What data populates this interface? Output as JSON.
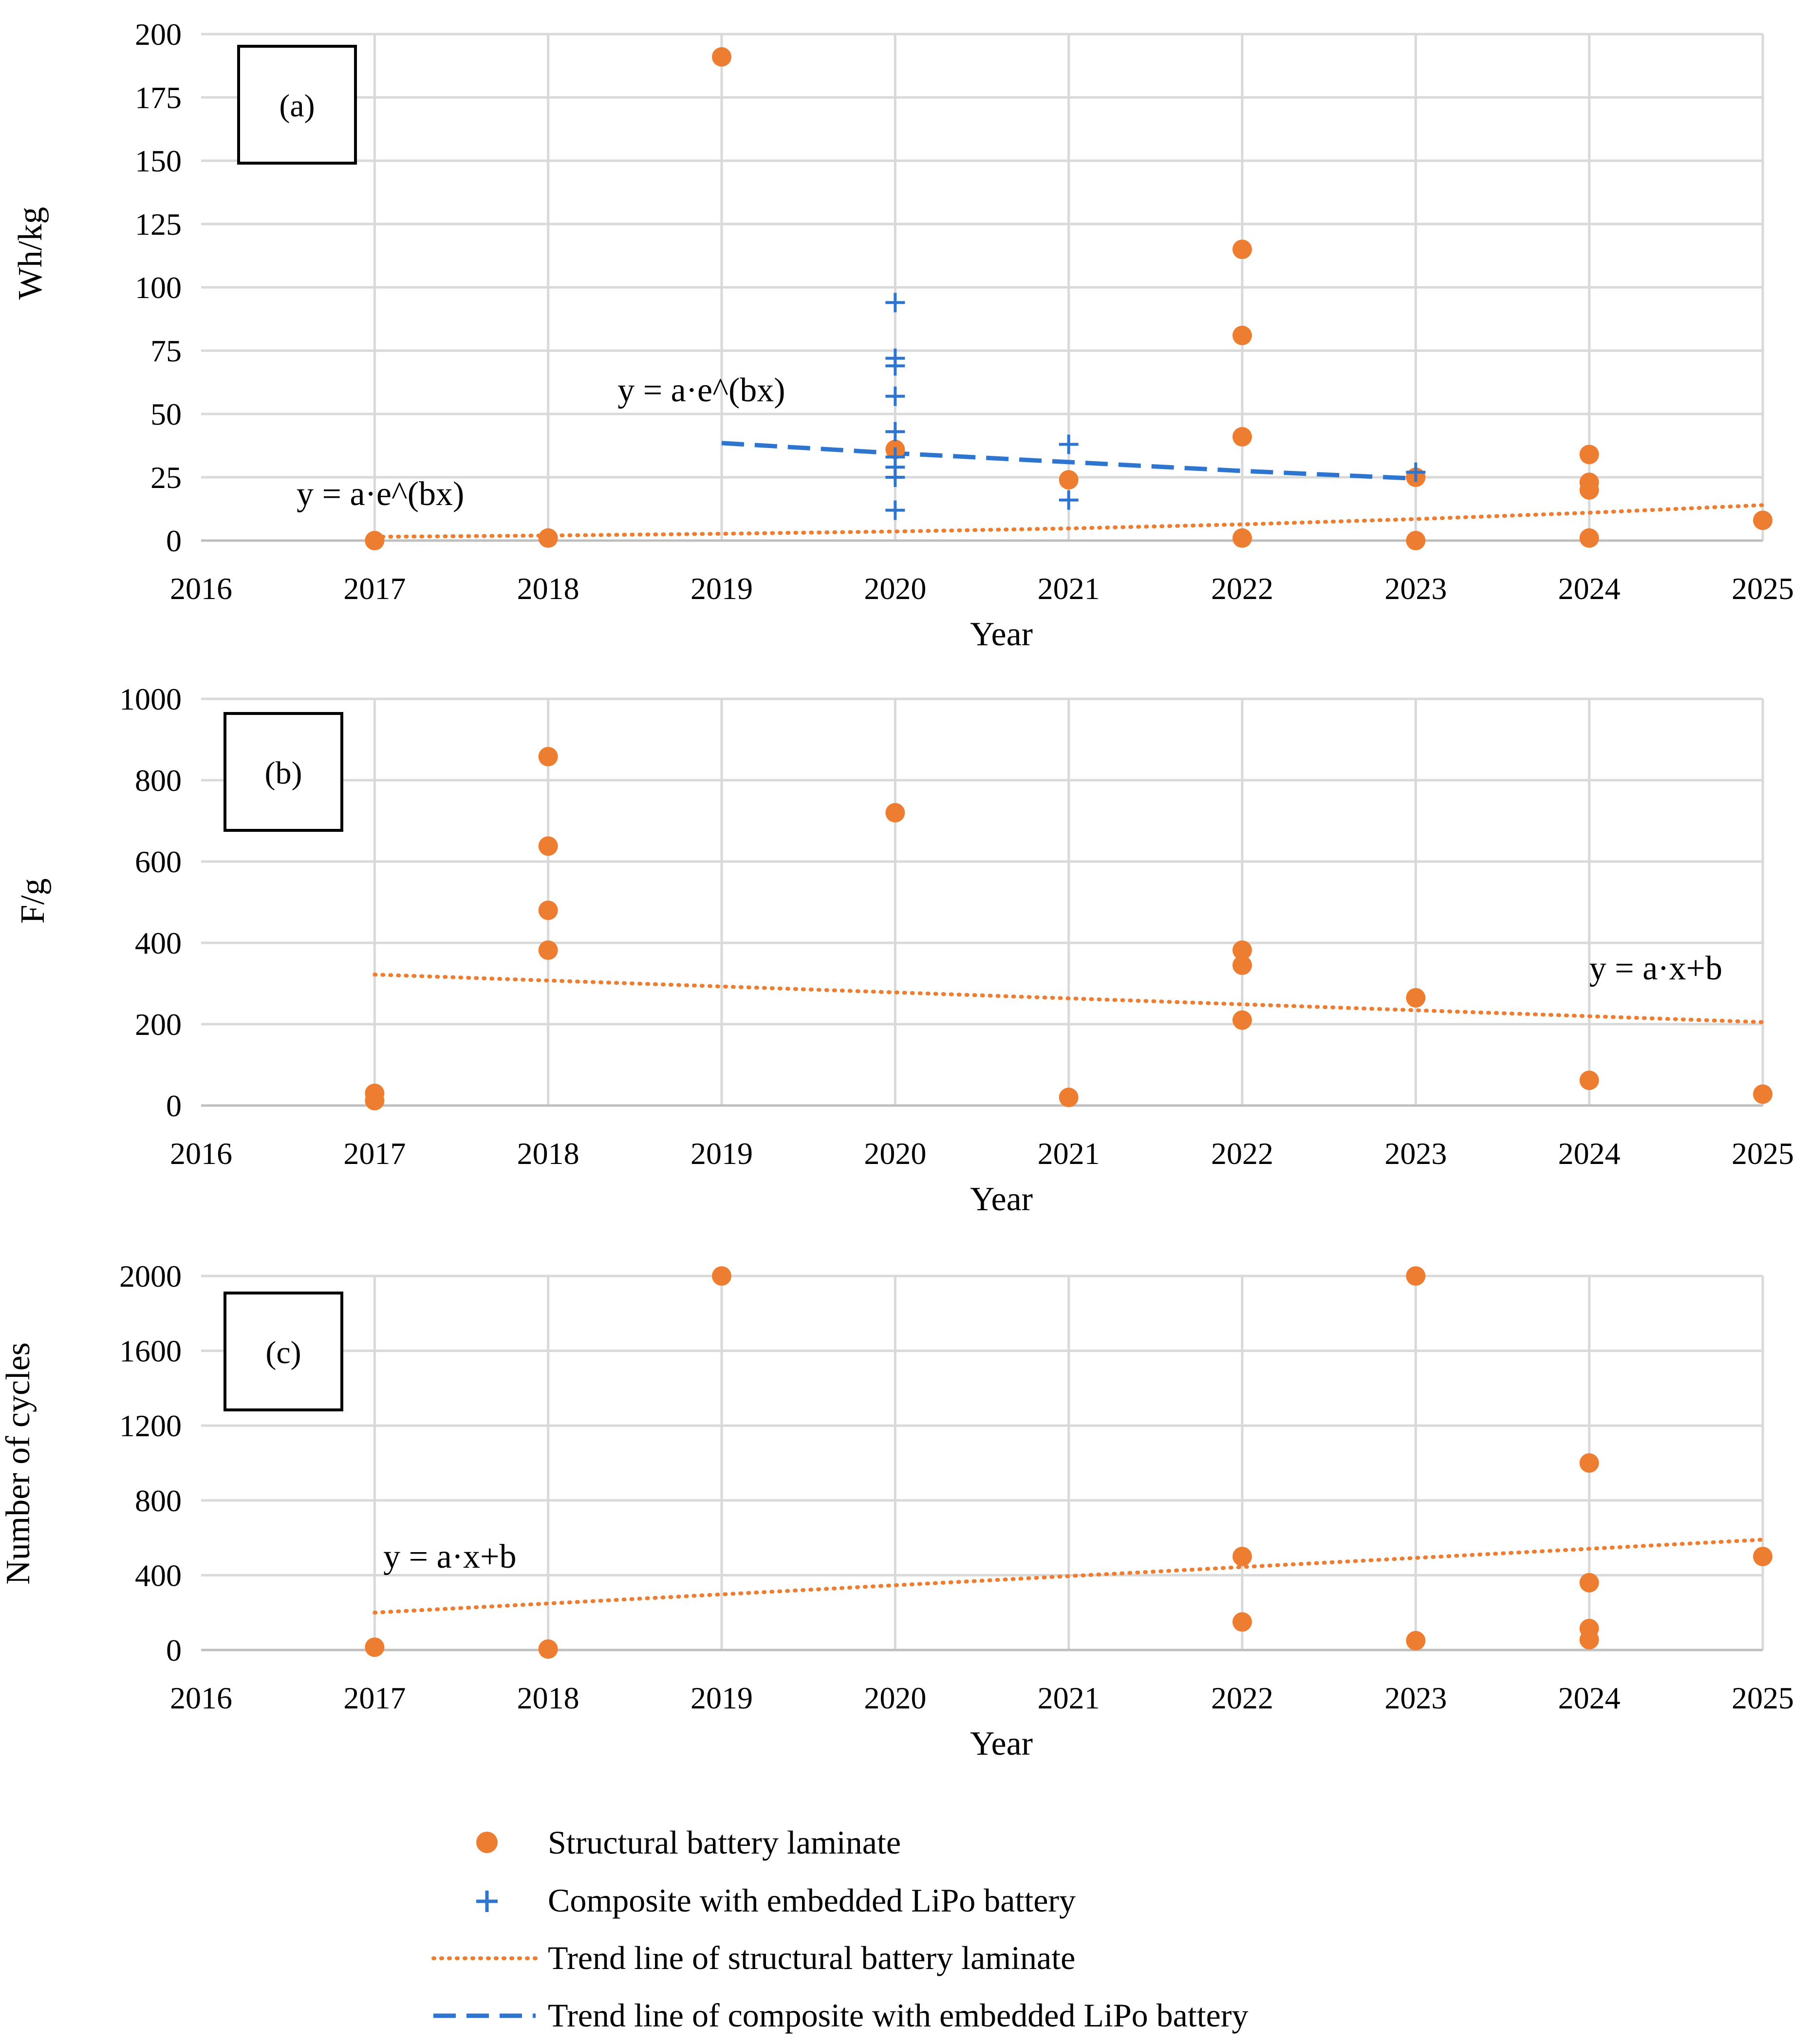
{
  "colors": {
    "structural": "#ED7D31",
    "composite": "#2E75D0",
    "grid": "#D9D9D9"
  },
  "legend": {
    "structural_label": "Structural battery laminate",
    "composite_label": "Composite with embedded LiPo battery",
    "structural_trend_label": "Trend line of structural battery laminate",
    "composite_trend_label": "Trend line of composite with embedded LiPo battery"
  },
  "chart_data": [
    {
      "type": "scatter",
      "panel_label": "(a)",
      "xlabel": "Year",
      "ylabel": "Wh/kg",
      "xlim": [
        2016,
        2025
      ],
      "ylim": [
        0,
        200
      ],
      "xticks": [
        2016,
        2017,
        2018,
        2019,
        2020,
        2021,
        2022,
        2023,
        2024,
        2025
      ],
      "yticks": [
        0,
        25,
        50,
        75,
        100,
        125,
        150,
        175,
        200
      ],
      "grid": true,
      "series": [
        {
          "name": "Structural battery laminate",
          "marker": "circle",
          "points": [
            [
              2017,
              0
            ],
            [
              2018,
              1
            ],
            [
              2019,
              191
            ],
            [
              2020,
              36
            ],
            [
              2021,
              24
            ],
            [
              2022,
              115
            ],
            [
              2022,
              81
            ],
            [
              2022,
              41
            ],
            [
              2022,
              1
            ],
            [
              2023,
              25
            ],
            [
              2023,
              0
            ],
            [
              2024,
              34
            ],
            [
              2024,
              23
            ],
            [
              2024,
              20
            ],
            [
              2024,
              1
            ],
            [
              2025,
              8
            ]
          ]
        },
        {
          "name": "Composite with embedded LiPo battery",
          "marker": "plus",
          "points": [
            [
              2020,
              94
            ],
            [
              2020,
              72
            ],
            [
              2020,
              69
            ],
            [
              2020,
              57
            ],
            [
              2020,
              43
            ],
            [
              2020,
              33
            ],
            [
              2020,
              29
            ],
            [
              2020,
              25
            ],
            [
              2020,
              12
            ],
            [
              2021,
              38
            ],
            [
              2021,
              16
            ],
            [
              2023,
              27
            ]
          ]
        }
      ],
      "trendlines": [
        {
          "name": "Trend line of structural battery laminate",
          "style": "dotted",
          "x": [
            2017,
            2018,
            2019,
            2020,
            2021,
            2022,
            2023,
            2024,
            2025
          ],
          "y": [
            1.5,
            2,
            2.7,
            3.6,
            4.8,
            6.4,
            8.5,
            11,
            14
          ]
        },
        {
          "name": "Trend line of composite with embedded LiPo battery",
          "style": "dashed",
          "x": [
            2019,
            2020,
            2021,
            2022,
            2023
          ],
          "y": [
            38.5,
            34.5,
            31,
            27.5,
            24.5
          ]
        }
      ],
      "annotations": [
        {
          "text": "y = a·e^(bx)",
          "x": 2016.55,
          "y": 14
        },
        {
          "text": "y = a·e^(bx)",
          "x": 2018.4,
          "y": 55
        }
      ]
    },
    {
      "type": "scatter",
      "panel_label": "(b)",
      "xlabel": "Year",
      "ylabel": "F/g",
      "xlim": [
        2016,
        2025
      ],
      "ylim": [
        0,
        1000
      ],
      "xticks": [
        2016,
        2017,
        2018,
        2019,
        2020,
        2021,
        2022,
        2023,
        2024,
        2025
      ],
      "yticks": [
        0,
        200,
        400,
        600,
        800,
        1000
      ],
      "grid": true,
      "series": [
        {
          "name": "Structural battery laminate",
          "marker": "circle",
          "points": [
            [
              2017,
              30
            ],
            [
              2017,
              12
            ],
            [
              2018,
              858
            ],
            [
              2018,
              638
            ],
            [
              2018,
              480
            ],
            [
              2018,
              382
            ],
            [
              2020,
              720
            ],
            [
              2021,
              20
            ],
            [
              2022,
              382
            ],
            [
              2022,
              345
            ],
            [
              2022,
              210
            ],
            [
              2023,
              265
            ],
            [
              2024,
              62
            ],
            [
              2025,
              28
            ]
          ]
        }
      ],
      "trendlines": [
        {
          "name": "Trend line of structural battery laminate",
          "style": "dotted",
          "x": [
            2017,
            2025
          ],
          "y": [
            322,
            205
          ]
        }
      ],
      "annotations": [
        {
          "text": "y = a·x+b",
          "x": 2024,
          "y": 310
        }
      ]
    },
    {
      "type": "scatter",
      "panel_label": "(c)",
      "xlabel": "Year",
      "ylabel": "Number of cycles",
      "xlim": [
        2016,
        2025
      ],
      "ylim": [
        0,
        2000
      ],
      "xticks": [
        2016,
        2017,
        2018,
        2019,
        2020,
        2021,
        2022,
        2023,
        2024,
        2025
      ],
      "yticks": [
        0,
        400,
        800,
        1200,
        1600,
        2000
      ],
      "grid": true,
      "series": [
        {
          "name": "Structural battery laminate",
          "marker": "circle",
          "points": [
            [
              2017,
              15
            ],
            [
              2018,
              5
            ],
            [
              2019,
              2000
            ],
            [
              2022,
              500
            ],
            [
              2022,
              150
            ],
            [
              2023,
              2000
            ],
            [
              2023,
              50
            ],
            [
              2024,
              1000
            ],
            [
              2024,
              360
            ],
            [
              2024,
              115
            ],
            [
              2024,
              55
            ],
            [
              2025,
              500
            ]
          ]
        }
      ],
      "trendlines": [
        {
          "name": "Trend line of structural battery laminate",
          "style": "dotted",
          "x": [
            2017,
            2025
          ],
          "y": [
            200,
            590
          ]
        }
      ],
      "annotations": [
        {
          "text": "y = a·x+b",
          "x": 2017.05,
          "y": 440
        }
      ]
    }
  ]
}
